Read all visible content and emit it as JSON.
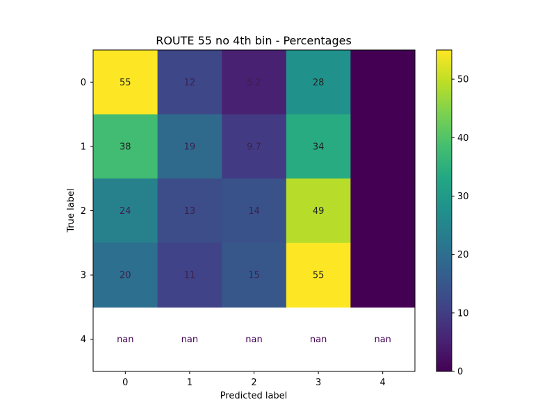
{
  "chart_data": {
    "type": "heatmap",
    "title": "ROUTE 55 no 4th bin - Percentages",
    "xlabel": "Predicted label",
    "ylabel": "True label",
    "x_ticks": [
      "0",
      "1",
      "2",
      "3",
      "4"
    ],
    "y_ticks": [
      "0",
      "1",
      "2",
      "3",
      "4"
    ],
    "values": [
      [
        55,
        12,
        5.2,
        28,
        0
      ],
      [
        38,
        19,
        9.7,
        34,
        0
      ],
      [
        24,
        13,
        14,
        49,
        0
      ],
      [
        20,
        11,
        15,
        55,
        0
      ],
      [
        null,
        null,
        null,
        null,
        null
      ]
    ],
    "cell_labels": [
      [
        "55",
        "12",
        "5.2",
        "28",
        ""
      ],
      [
        "38",
        "19",
        "9.7",
        "34",
        ""
      ],
      [
        "24",
        "13",
        "14",
        "49",
        ""
      ],
      [
        "20",
        "11",
        "15",
        "55",
        ""
      ],
      [
        "nan",
        "nan",
        "nan",
        "nan",
        "nan"
      ]
    ],
    "colormap": "viridis",
    "vmin": 0,
    "vmax": 55,
    "colorbar_ticks": [
      "0",
      "10",
      "20",
      "30",
      "40",
      "50"
    ],
    "colorbar_tick_values": [
      0,
      10,
      20,
      30,
      40,
      50
    ]
  }
}
